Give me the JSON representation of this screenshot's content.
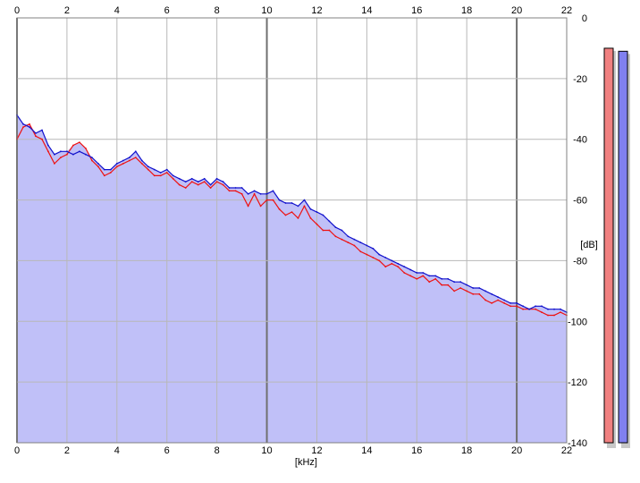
{
  "chart_data": {
    "type": "area",
    "xlabel": "[kHz]",
    "ylabel": "[dB]",
    "xlim": [
      0,
      22
    ],
    "ylim": [
      -140,
      0
    ],
    "x_ticks": [
      "0",
      "2",
      "4",
      "6",
      "8",
      "10",
      "12",
      "14",
      "16",
      "18",
      "20",
      "22"
    ],
    "y_ticks": [
      "0",
      "-20",
      "-40",
      "-60",
      "-80",
      "-100",
      "-120",
      "-140"
    ],
    "grid": true,
    "series": [
      {
        "color": "#ee1111",
        "x": [
          0,
          0.25,
          0.5,
          0.75,
          1,
          1.25,
          1.5,
          1.75,
          2,
          2.25,
          2.5,
          2.75,
          3,
          3.25,
          3.5,
          3.75,
          4,
          4.25,
          4.5,
          4.75,
          5,
          5.25,
          5.5,
          5.75,
          6,
          6.25,
          6.5,
          6.75,
          7,
          7.25,
          7.5,
          7.75,
          8,
          8.25,
          8.5,
          8.75,
          9,
          9.25,
          9.5,
          9.75,
          10,
          10.25,
          10.5,
          10.75,
          11,
          11.25,
          11.5,
          11.75,
          12,
          12.25,
          12.5,
          12.75,
          13,
          13.25,
          13.5,
          13.75,
          14,
          14.25,
          14.5,
          14.75,
          15,
          15.25,
          15.5,
          15.75,
          16,
          16.25,
          16.5,
          16.75,
          17,
          17.25,
          17.5,
          17.75,
          18,
          18.25,
          18.5,
          18.75,
          19,
          19.25,
          19.5,
          19.75,
          20,
          20.25,
          20.5,
          20.75,
          21,
          21.25,
          21.5,
          21.75,
          22
        ],
        "y": [
          -40,
          -36,
          -35,
          -39,
          -40,
          -44,
          -48,
          -46,
          -45,
          -42,
          -41,
          -43,
          -47,
          -49,
          -52,
          -51,
          -49,
          -48,
          -47,
          -46,
          -48,
          -50,
          -52,
          -52,
          -51,
          -53,
          -55,
          -56,
          -54,
          -55,
          -54,
          -56,
          -54,
          -55,
          -57,
          -57,
          -58,
          -62,
          -58,
          -62,
          -60,
          -60,
          -63,
          -65,
          -64,
          -66,
          -62,
          -66,
          -68,
          -70,
          -70,
          -72,
          -73,
          -74,
          -75,
          -77,
          -78,
          -79,
          -80,
          -82,
          -81,
          -82,
          -84,
          -85,
          -86,
          -85,
          -87,
          -86,
          -88,
          -88,
          -90,
          -89,
          -90,
          -91,
          -91,
          -93,
          -94,
          -93,
          -94,
          -95,
          -95,
          -96,
          -96,
          -96,
          -97,
          -98,
          -98,
          -97,
          -98
        ]
      },
      {
        "color": "#1111cc",
        "x": [
          0,
          0.25,
          0.5,
          0.75,
          1,
          1.25,
          1.5,
          1.75,
          2,
          2.25,
          2.5,
          2.75,
          3,
          3.25,
          3.5,
          3.75,
          4,
          4.25,
          4.5,
          4.75,
          5,
          5.25,
          5.5,
          5.75,
          6,
          6.25,
          6.5,
          6.75,
          7,
          7.25,
          7.5,
          7.75,
          8,
          8.25,
          8.5,
          8.75,
          9,
          9.25,
          9.5,
          9.75,
          10,
          10.25,
          10.5,
          10.75,
          11,
          11.25,
          11.5,
          11.75,
          12,
          12.25,
          12.5,
          12.75,
          13,
          13.25,
          13.5,
          13.75,
          14,
          14.25,
          14.5,
          14.75,
          15,
          15.25,
          15.5,
          15.75,
          16,
          16.25,
          16.5,
          16.75,
          17,
          17.25,
          17.5,
          17.75,
          18,
          18.25,
          18.5,
          18.75,
          19,
          19.25,
          19.5,
          19.75,
          20,
          20.25,
          20.5,
          20.75,
          21,
          21.25,
          21.5,
          21.75,
          22
        ],
        "y": [
          -32,
          -35,
          -36,
          -38,
          -37,
          -42,
          -45,
          -44,
          -44,
          -45,
          -44,
          -45,
          -46,
          -48,
          -50,
          -50,
          -48,
          -47,
          -46,
          -44,
          -47,
          -49,
          -50,
          -51,
          -50,
          -52,
          -53,
          -54,
          -53,
          -54,
          -53,
          -55,
          -53,
          -54,
          -56,
          -56,
          -56,
          -58,
          -57,
          -58,
          -58,
          -57,
          -60,
          -61,
          -61,
          -62,
          -60,
          -63,
          -64,
          -65,
          -67,
          -69,
          -70,
          -72,
          -73,
          -74,
          -75,
          -76,
          -78,
          -79,
          -80,
          -81,
          -82,
          -83,
          -84,
          -84,
          -85,
          -85,
          -86,
          -86,
          -87,
          -87,
          -88,
          -89,
          -89,
          -90,
          -91,
          -92,
          -93,
          -94,
          -94,
          -95,
          -96,
          -95,
          -95,
          -96,
          -96,
          -96,
          -97
        ]
      }
    ],
    "meters": [
      {
        "channel": "left",
        "color": "#f08080",
        "level_db": -10
      },
      {
        "channel": "right",
        "color": "#8080f0",
        "level_db": -11
      }
    ],
    "fill_color": "#c0c0f8"
  }
}
